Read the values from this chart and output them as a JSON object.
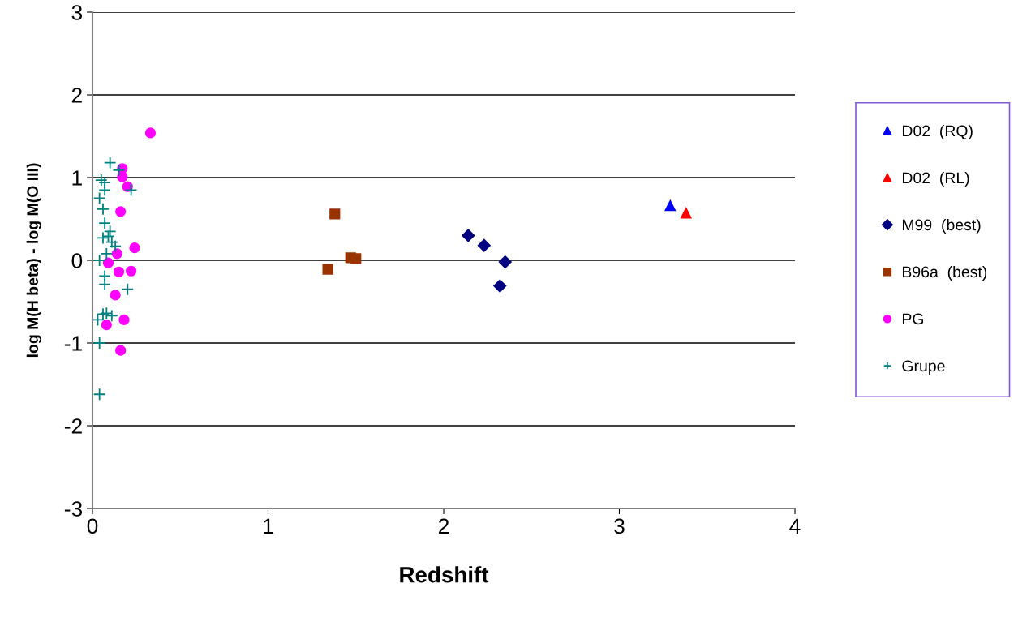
{
  "chart_data": {
    "type": "scatter",
    "xlabel": "Redshift",
    "ylabel": "log M(H beta) - log M(O III)",
    "xlim": [
      0,
      4
    ],
    "ylim": [
      -3,
      3
    ],
    "xticks": [
      0,
      1,
      2,
      3,
      4
    ],
    "yticks": [
      -3,
      -2,
      -1,
      0,
      1,
      2,
      3
    ],
    "grid": "y",
    "legend": "right",
    "series": [
      {
        "name": "D02  (RQ)",
        "color": "#0000ff",
        "marker": "triangle",
        "x": [
          3.29
        ],
        "values": [
          0.66
        ]
      },
      {
        "name": "D02  (RL)",
        "color": "#ff0000",
        "marker": "triangle",
        "x": [
          3.38
        ],
        "values": [
          0.57
        ]
      },
      {
        "name": "M99  (best)",
        "color": "#000080",
        "marker": "diamond",
        "x": [
          2.14,
          2.23,
          2.35,
          2.32
        ],
        "values": [
          0.3,
          0.18,
          -0.02,
          -0.31
        ]
      },
      {
        "name": "B96a  (best)",
        "color": "#993300",
        "marker": "square",
        "x": [
          1.38,
          1.34,
          1.47,
          1.5
        ],
        "values": [
          0.56,
          -0.11,
          0.03,
          0.02
        ]
      },
      {
        "name": "PG",
        "color": "#ff00ff",
        "marker": "circle",
        "x": [
          0.33,
          0.17,
          0.17,
          0.2,
          0.16,
          0.24,
          0.14,
          0.09,
          0.15,
          0.22,
          0.13,
          0.18,
          0.08,
          0.16
        ],
        "values": [
          1.54,
          1.11,
          1.01,
          0.89,
          0.59,
          0.15,
          0.08,
          -0.03,
          -0.14,
          -0.13,
          -0.42,
          -0.72,
          -0.78,
          -1.09
        ]
      },
      {
        "name": "Grupe",
        "color": "#008080",
        "marker": "cross",
        "x": [
          0.1,
          0.15,
          0.05,
          0.07,
          0.07,
          0.22,
          0.04,
          0.06,
          0.07,
          0.1,
          0.09,
          0.06,
          0.11,
          0.13,
          0.08,
          0.04,
          0.07,
          0.07,
          0.2,
          0.06,
          0.08,
          0.11,
          0.03,
          0.04,
          0.04
        ],
        "values": [
          1.18,
          1.09,
          0.97,
          0.94,
          0.85,
          0.85,
          0.75,
          0.62,
          0.45,
          0.35,
          0.29,
          0.27,
          0.22,
          0.17,
          0.08,
          0.0,
          -0.19,
          -0.29,
          -0.35,
          -0.65,
          -0.64,
          -0.67,
          -0.72,
          -1.0,
          -1.62
        ]
      }
    ]
  }
}
